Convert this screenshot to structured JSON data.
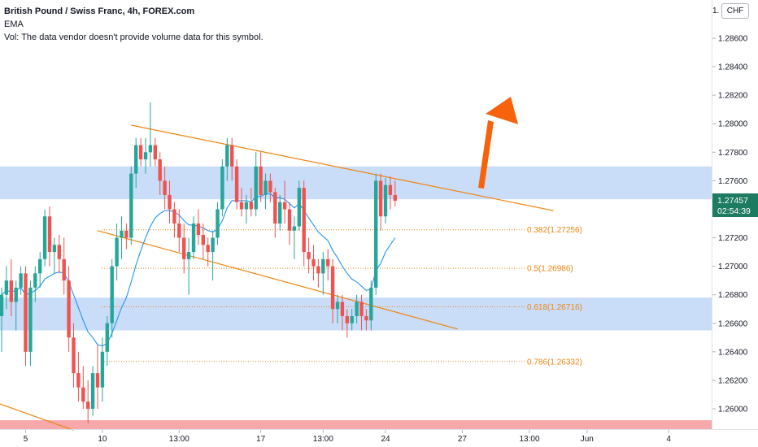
{
  "legend": {
    "symbol": "British Pound / Swiss Franc, 4h, FOREX.com",
    "indicator": "EMA",
    "volume_note": "Vol: The data vendor doesn't provide volume data for this symbol."
  },
  "currency_badge": "CHF",
  "price_tag": {
    "value": "1.27457",
    "countdown": "02:54:39"
  },
  "colors": {
    "up": "#26a69a",
    "down": "#ef5350",
    "ema": "#2196f3",
    "trendline": "#f0850f",
    "zone": "#b7d0f5",
    "red_zone": "#f7a8ab",
    "arrow": "#f7630c",
    "tag": "#1c7b60"
  },
  "chart_data": {
    "type": "candlestick",
    "title": "British Pound / Swiss Franc, 4h, FOREX.com",
    "ylim": [
      1.2586,
      1.2888
    ],
    "y_ticks": [
      "1.28600",
      "1.28400",
      "1.28200",
      "1.28000",
      "1.27800",
      "1.27600",
      "1.27200",
      "1.27000",
      "1.26800",
      "1.26600",
      "1.26400",
      "1.26200",
      "1.26000"
    ],
    "y_tick_values": [
      1.286,
      1.284,
      1.282,
      1.28,
      1.278,
      1.276,
      1.272,
      1.27,
      1.268,
      1.266,
      1.264,
      1.262,
      1.26
    ],
    "x_ticks": [
      "5",
      "10",
      "13:00",
      "17",
      "13:00",
      "24",
      "27",
      "13:00",
      "Jun",
      "4"
    ],
    "x_tick_positions": [
      5,
      21,
      37,
      54,
      67,
      80,
      96,
      110,
      122,
      139
    ],
    "top_partial_tick": "1.",
    "candles": [
      [
        1.2665,
        1.2685,
        1.264,
        1.268
      ],
      [
        1.268,
        1.27,
        1.267,
        1.269
      ],
      [
        1.269,
        1.2705,
        1.2665,
        1.2675
      ],
      [
        1.2675,
        1.269,
        1.2655,
        1.2685
      ],
      [
        1.2685,
        1.27,
        1.268,
        1.2695
      ],
      [
        1.2695,
        1.27,
        1.263,
        1.264
      ],
      [
        1.264,
        1.269,
        1.263,
        1.2685
      ],
      [
        1.2685,
        1.27,
        1.2675,
        1.2695
      ],
      [
        1.2695,
        1.271,
        1.2685,
        1.2705
      ],
      [
        1.2705,
        1.274,
        1.27,
        1.2735
      ],
      [
        1.2735,
        1.2742,
        1.27,
        1.271
      ],
      [
        1.271,
        1.272,
        1.2695,
        1.2715
      ],
      [
        1.2715,
        1.2722,
        1.2695,
        1.2705
      ],
      [
        1.2705,
        1.272,
        1.268,
        1.269
      ],
      [
        1.269,
        1.27,
        1.264,
        1.265
      ],
      [
        1.265,
        1.266,
        1.2615,
        1.2625
      ],
      [
        1.2625,
        1.264,
        1.2605,
        1.2615
      ],
      [
        1.2615,
        1.263,
        1.26,
        1.2605
      ],
      [
        1.2605,
        1.262,
        1.259,
        1.26
      ],
      [
        1.26,
        1.263,
        1.2595,
        1.2625
      ],
      [
        1.2625,
        1.2645,
        1.26,
        1.2615
      ],
      [
        1.2615,
        1.265,
        1.2605,
        1.264
      ],
      [
        1.264,
        1.2665,
        1.263,
        1.266
      ],
      [
        1.266,
        1.2705,
        1.265,
        1.27
      ],
      [
        1.27,
        1.273,
        1.269,
        1.272
      ],
      [
        1.272,
        1.2735,
        1.2705,
        1.2725
      ],
      [
        1.2725,
        1.273,
        1.2712,
        1.272
      ],
      [
        1.272,
        1.277,
        1.2715,
        1.2765
      ],
      [
        1.2765,
        1.279,
        1.2755,
        1.2785
      ],
      [
        1.2785,
        1.279,
        1.277,
        1.2775
      ],
      [
        1.2775,
        1.279,
        1.2765,
        1.278
      ],
      [
        1.278,
        1.2815,
        1.277,
        1.2785
      ],
      [
        1.2785,
        1.279,
        1.277,
        1.2775
      ],
      [
        1.2775,
        1.278,
        1.275,
        1.276
      ],
      [
        1.276,
        1.277,
        1.274,
        1.275
      ],
      [
        1.275,
        1.276,
        1.273,
        1.274
      ],
      [
        1.274,
        1.2745,
        1.272,
        1.273
      ],
      [
        1.273,
        1.274,
        1.271,
        1.272
      ],
      [
        1.272,
        1.273,
        1.2695,
        1.2705
      ],
      [
        1.2705,
        1.272,
        1.268,
        1.271
      ],
      [
        1.271,
        1.2735,
        1.2705,
        1.273
      ],
      [
        1.273,
        1.274,
        1.2715,
        1.2722
      ],
      [
        1.2722,
        1.273,
        1.2705,
        1.2715
      ],
      [
        1.2715,
        1.272,
        1.27,
        1.271
      ],
      [
        1.271,
        1.2725,
        1.269,
        1.272
      ],
      [
        1.272,
        1.2745,
        1.2715,
        1.274
      ],
      [
        1.274,
        1.2775,
        1.2735,
        1.277
      ],
      [
        1.277,
        1.279,
        1.276,
        1.2785
      ],
      [
        1.2785,
        1.279,
        1.276,
        1.277
      ],
      [
        1.277,
        1.2775,
        1.274,
        1.2745
      ],
      [
        1.2745,
        1.2755,
        1.2735,
        1.274
      ],
      [
        1.274,
        1.275,
        1.273,
        1.2745
      ],
      [
        1.2745,
        1.2755,
        1.2735,
        1.274
      ],
      [
        1.274,
        1.278,
        1.2735,
        1.277
      ],
      [
        1.277,
        1.278,
        1.2745,
        1.275
      ],
      [
        1.275,
        1.2765,
        1.274,
        1.276
      ],
      [
        1.276,
        1.2765,
        1.2745,
        1.2752
      ],
      [
        1.2752,
        1.2755,
        1.272,
        1.273
      ],
      [
        1.273,
        1.275,
        1.2725,
        1.2745
      ],
      [
        1.2745,
        1.276,
        1.273,
        1.274
      ],
      [
        1.274,
        1.2745,
        1.2715,
        1.2725
      ],
      [
        1.2725,
        1.2735,
        1.2705,
        1.2728
      ],
      [
        1.2728,
        1.276,
        1.2725,
        1.2755
      ],
      [
        1.2755,
        1.276,
        1.27,
        1.271
      ],
      [
        1.271,
        1.272,
        1.2695,
        1.2705
      ],
      [
        1.2705,
        1.2715,
        1.269,
        1.27
      ],
      [
        1.27,
        1.2705,
        1.2685,
        1.2695
      ],
      [
        1.2695,
        1.271,
        1.268,
        1.2705
      ],
      [
        1.2705,
        1.2712,
        1.269,
        1.27
      ],
      [
        1.27,
        1.2705,
        1.266,
        1.267
      ],
      [
        1.267,
        1.268,
        1.266,
        1.2675
      ],
      [
        1.2675,
        1.268,
        1.2655,
        1.2665
      ],
      [
        1.2665,
        1.267,
        1.265,
        1.266
      ],
      [
        1.266,
        1.267,
        1.2655,
        1.2665
      ],
      [
        1.2665,
        1.268,
        1.266,
        1.2675
      ],
      [
        1.2675,
        1.268,
        1.2655,
        1.2665
      ],
      [
        1.2665,
        1.267,
        1.2655,
        1.2662
      ],
      [
        1.2662,
        1.269,
        1.2655,
        1.2685
      ],
      [
        1.2685,
        1.2765,
        1.268,
        1.276
      ],
      [
        1.276,
        1.2765,
        1.2725,
        1.2735
      ],
      [
        1.2735,
        1.2762,
        1.273,
        1.2757
      ],
      [
        1.2757,
        1.2763,
        1.274,
        1.275
      ],
      [
        1.275,
        1.276,
        1.2742,
        1.2746
      ]
    ],
    "ema": [
      1.268,
      1.2683,
      1.2682,
      1.2683,
      1.2685,
      1.268,
      1.2681,
      1.2683,
      1.2686,
      1.2691,
      1.2693,
      1.2695,
      1.2696,
      1.2695,
      1.2689,
      1.268,
      1.2671,
      1.2662,
      1.2654,
      1.265,
      1.2645,
      1.2644,
      1.2646,
      1.2653,
      1.2662,
      1.2671,
      1.2678,
      1.2689,
      1.2701,
      1.2711,
      1.272,
      1.2728,
      1.2734,
      1.2737,
      1.2739,
      1.2739,
      1.2738,
      1.2736,
      1.2732,
      1.2729,
      1.2729,
      1.2728,
      1.2727,
      1.2725,
      1.2724,
      1.2726,
      1.2732,
      1.2741,
      1.2746,
      1.2746,
      1.2746,
      1.2746,
      1.2745,
      1.2749,
      1.2749,
      1.2751,
      1.2751,
      1.2748,
      1.2748,
      1.2747,
      1.2744,
      1.2741,
      1.2744,
      1.2739,
      1.2734,
      1.2729,
      1.2724,
      1.2721,
      1.2718,
      1.2711,
      1.2706,
      1.27,
      1.2695,
      1.2691,
      1.2689,
      1.2686,
      1.2683,
      1.2684,
      1.2697,
      1.2702,
      1.271,
      1.2715,
      1.272
    ],
    "fib_levels": [
      {
        "label": "0.382(1.27256)",
        "value": 1.27256
      },
      {
        "label": "0.5(1.26986)",
        "value": 1.26986
      },
      {
        "label": "0.618(1.26716)",
        "value": 1.26716
      },
      {
        "label": "0.786(1.26332)",
        "value": 1.26332
      }
    ],
    "zones": [
      {
        "from": 1.2747,
        "to": 1.277
      },
      {
        "from": 1.2655,
        "to": 1.2678
      }
    ],
    "red_zone": {
      "from": 1.2584,
      "to": 1.2592
    },
    "trendlines": [
      {
        "x1": 27,
        "y1": 1.2799,
        "x2": 115,
        "y2": 1.2739
      },
      {
        "x1": 20,
        "y1": 1.2725,
        "x2": 95,
        "y2": 1.2656
      },
      {
        "x1": -10,
        "y1": 1.2615,
        "x2": 15,
        "y2": 1.2585
      }
    ]
  }
}
